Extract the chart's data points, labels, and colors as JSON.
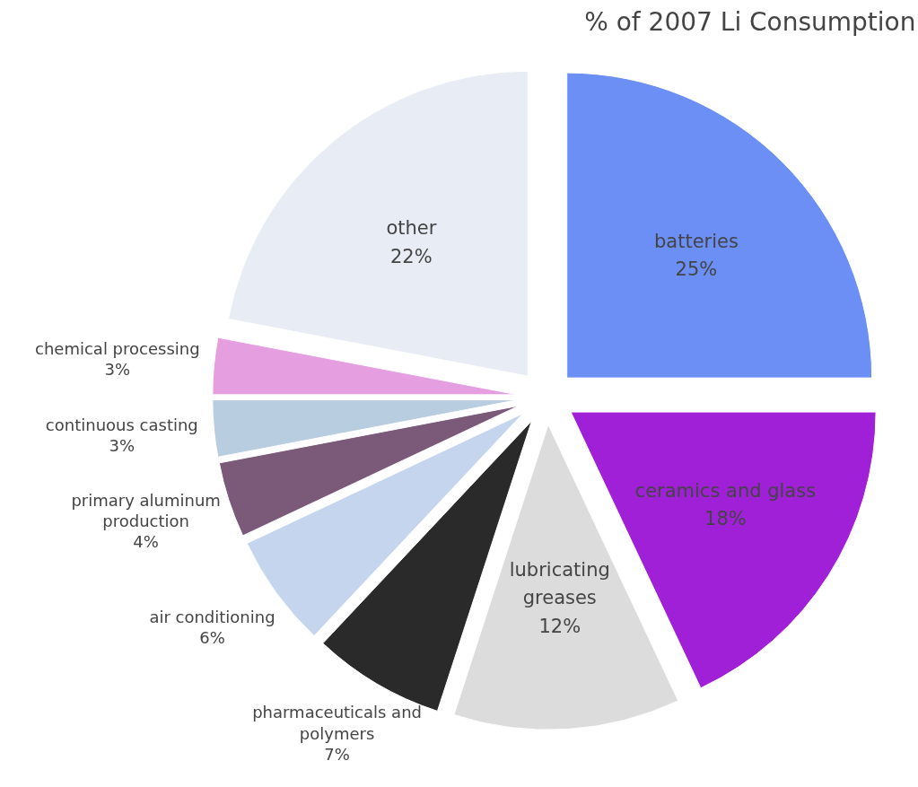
{
  "chart_data": {
    "type": "pie",
    "title": "% of 2007 Li Consumption",
    "categories": [
      "batteries",
      "ceramics and glass",
      "lubricating greases",
      "pharmaceuticals and polymers",
      "air conditioning",
      "primary aluminum production",
      "continuous casting",
      "chemical processing",
      "other"
    ],
    "values": [
      25,
      18,
      12,
      7,
      6,
      4,
      3,
      3,
      22
    ],
    "colors": [
      "#6b8ff5",
      "#a020d8",
      "#dcdcdc",
      "#2a2a2a",
      "#c5d5ee",
      "#7a5a78",
      "#b9cde0",
      "#e59ee0",
      "#e8edf5"
    ],
    "value_labels": [
      "25%",
      "18%",
      "12%",
      "7%",
      "6%",
      "4%",
      "3%",
      "3%",
      "22%"
    ]
  }
}
